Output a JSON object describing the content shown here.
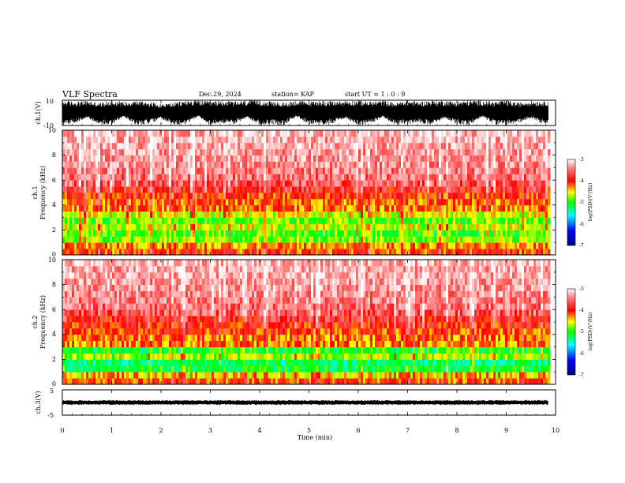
{
  "header": {
    "title": "VLF Spectra",
    "date": "Dec.29, 2024",
    "station": "station= KAP",
    "start": "start  UT  =   1 : 0  : 9"
  },
  "chart_data": [
    {
      "type": "line",
      "name": "ch1-waveform",
      "ylabel": "ch.1(V)",
      "ylim": [
        -10,
        10
      ],
      "ytick_labels": [
        "10",
        "-10"
      ],
      "xlim": [
        0,
        10
      ],
      "data_end_min": 9.85,
      "x": [
        0,
        0.25,
        0.5,
        0.75,
        1,
        1.25,
        1.5,
        1.75,
        2,
        2.25,
        2.5,
        2.75,
        3,
        3.25,
        3.5,
        3.75,
        4,
        4.25,
        4.5,
        4.75,
        5,
        5.25,
        5.5,
        5.75,
        6,
        6.25,
        6.5,
        6.75,
        7,
        7.25,
        7.5,
        7.75,
        8,
        8.25,
        8.5,
        8.75,
        9,
        9.25,
        9.5,
        9.75,
        9.85
      ],
      "ymax": [
        10,
        9,
        10,
        8,
        10,
        9,
        10,
        9,
        7,
        8,
        10,
        10,
        9,
        10,
        9,
        10,
        10,
        9,
        8,
        10,
        9,
        10,
        9,
        10,
        10,
        9,
        10,
        8,
        10,
        9,
        10,
        10,
        9,
        10,
        10,
        9,
        10,
        8,
        10,
        9,
        10
      ],
      "ymin": [
        -10,
        -8,
        -4,
        -9,
        -10,
        -3,
        -10,
        -9,
        -5,
        -10,
        -9,
        -3,
        -10,
        -8,
        -9,
        -4,
        -10,
        -9,
        -10,
        -3,
        -9,
        -10,
        -8,
        -4,
        -10,
        -9,
        -3,
        -10,
        -9,
        -8,
        -10,
        -4,
        -9,
        -10,
        -3,
        -9,
        -10,
        -8,
        -4,
        -9,
        -10
      ]
    },
    {
      "type": "heatmap",
      "name": "ch1-spectrogram",
      "ylabel_line1": "ch.1",
      "ylabel_line2": "Frequency  (kHz)",
      "xlim": [
        0,
        10
      ],
      "ylim": [
        0,
        10
      ],
      "ytick_labels": [
        "0",
        "2",
        "4",
        "6",
        "8",
        "10"
      ],
      "data_end_min": 9.85,
      "freq_khz": [
        0.25,
        0.75,
        1.25,
        1.75,
        2.25,
        2.75,
        3.25,
        3.75,
        4.25,
        4.75,
        5.25,
        5.75,
        6.25,
        6.75,
        7.25,
        7.75,
        8.25,
        8.75,
        9.25,
        9.75
      ],
      "log_psd": [
        -4.1,
        -4.3,
        -4.75,
        -4.9,
        -4.6,
        -4.85,
        -4.55,
        -4.25,
        -4.15,
        -4.05,
        -3.85,
        -3.65,
        -3.55,
        -3.5,
        -3.45,
        -3.4,
        -3.4,
        -3.35,
        -3.35,
        -3.3
      ],
      "colorbar": {
        "label": "log(PSD)(V²/Hz)",
        "vmin": -7,
        "vmax": -3,
        "tick_values": [
          -3,
          -4,
          -5,
          -6,
          -7
        ],
        "tick_labels": [
          "-3",
          "-4",
          "-5",
          "-6",
          "-7"
        ]
      }
    },
    {
      "type": "heatmap",
      "name": "ch2-spectrogram",
      "ylabel_line1": "ch.2",
      "ylabel_line2": "Frequency  (kHz)",
      "xlim": [
        0,
        10
      ],
      "ylim": [
        0,
        10
      ],
      "ytick_labels": [
        "0",
        "2",
        "4",
        "6",
        "8",
        "10"
      ],
      "data_end_min": 9.85,
      "freq_khz": [
        0.25,
        0.75,
        1.25,
        1.75,
        2.25,
        2.75,
        3.25,
        3.75,
        4.25,
        4.75,
        5.25,
        5.75,
        6.25,
        6.75,
        7.25,
        7.75,
        8.25,
        8.75,
        9.25,
        9.75
      ],
      "log_psd": [
        -4.1,
        -4.4,
        -5.1,
        -5.25,
        -4.7,
        -5.05,
        -4.3,
        -4.2,
        -4.1,
        -4.0,
        -3.85,
        -3.65,
        -3.55,
        -3.5,
        -3.45,
        -3.4,
        -3.4,
        -3.35,
        -3.35,
        -3.3
      ],
      "colorbar": {
        "label": "log(PSD)(V²/Hz)",
        "vmin": -7,
        "vmax": -3,
        "tick_values": [
          -3,
          -4,
          -5,
          -6,
          -7
        ],
        "tick_labels": [
          "-3",
          "-4",
          "-5",
          "-6",
          "-7"
        ]
      }
    },
    {
      "type": "line",
      "name": "ch3-waveform",
      "ylabel": "ch.3(V)",
      "ylim": [
        -5,
        5
      ],
      "ytick_labels": [
        "5",
        "-5"
      ],
      "xlim": [
        0,
        10
      ],
      "data_end_min": 9.85,
      "band_min": -0.8,
      "band_max": 0.8
    }
  ],
  "x_axis": {
    "xlabel": "Time  (min)",
    "xlim": [
      0,
      10
    ],
    "tick_values": [
      0,
      1,
      2,
      3,
      4,
      5,
      6,
      7,
      8,
      9,
      10
    ],
    "tick_labels": [
      "0",
      "1",
      "2",
      "3",
      "4",
      "5",
      "6",
      "7",
      "8",
      "9",
      "10"
    ]
  },
  "colors": {
    "trace": "#000000",
    "colormap": [
      "#000080",
      "#0000ff",
      "#00ffff",
      "#00ff00",
      "#ffff00",
      "#ff0000",
      "#ffffff"
    ]
  }
}
